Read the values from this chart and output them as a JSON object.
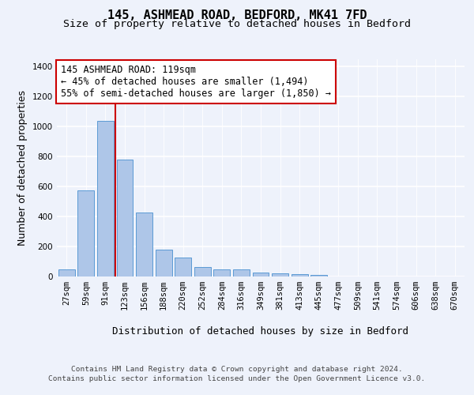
{
  "title_line1": "145, ASHMEAD ROAD, BEDFORD, MK41 7FD",
  "title_line2": "Size of property relative to detached houses in Bedford",
  "xlabel": "Distribution of detached houses by size in Bedford",
  "ylabel": "Number of detached properties",
  "categories": [
    "27sqm",
    "59sqm",
    "91sqm",
    "123sqm",
    "156sqm",
    "188sqm",
    "220sqm",
    "252sqm",
    "284sqm",
    "316sqm",
    "349sqm",
    "381sqm",
    "413sqm",
    "445sqm",
    "477sqm",
    "509sqm",
    "541sqm",
    "574sqm",
    "606sqm",
    "638sqm",
    "670sqm"
  ],
  "values": [
    48,
    575,
    1040,
    780,
    425,
    180,
    125,
    62,
    48,
    48,
    25,
    20,
    15,
    10,
    0,
    0,
    0,
    0,
    0,
    0,
    0
  ],
  "bar_color": "#aec6e8",
  "bar_edge_color": "#5b9bd5",
  "vline_x_idx": 2.5,
  "vline_color": "#cc0000",
  "annotation_text": "145 ASHMEAD ROAD: 119sqm\n← 45% of detached houses are smaller (1,494)\n55% of semi-detached houses are larger (1,850) →",
  "annotation_box_color": "#ffffff",
  "annotation_box_edge": "#cc0000",
  "ylim": [
    0,
    1450
  ],
  "yticks": [
    0,
    200,
    400,
    600,
    800,
    1000,
    1200,
    1400
  ],
  "bg_color": "#eef2fb",
  "plot_bg_color": "#eef2fb",
  "footer_line1": "Contains HM Land Registry data © Crown copyright and database right 2024.",
  "footer_line2": "Contains public sector information licensed under the Open Government Licence v3.0.",
  "title_fontsize": 11,
  "subtitle_fontsize": 9.5,
  "axis_label_fontsize": 9,
  "tick_fontsize": 7.5,
  "annotation_fontsize": 8.5,
  "footer_fontsize": 6.8
}
